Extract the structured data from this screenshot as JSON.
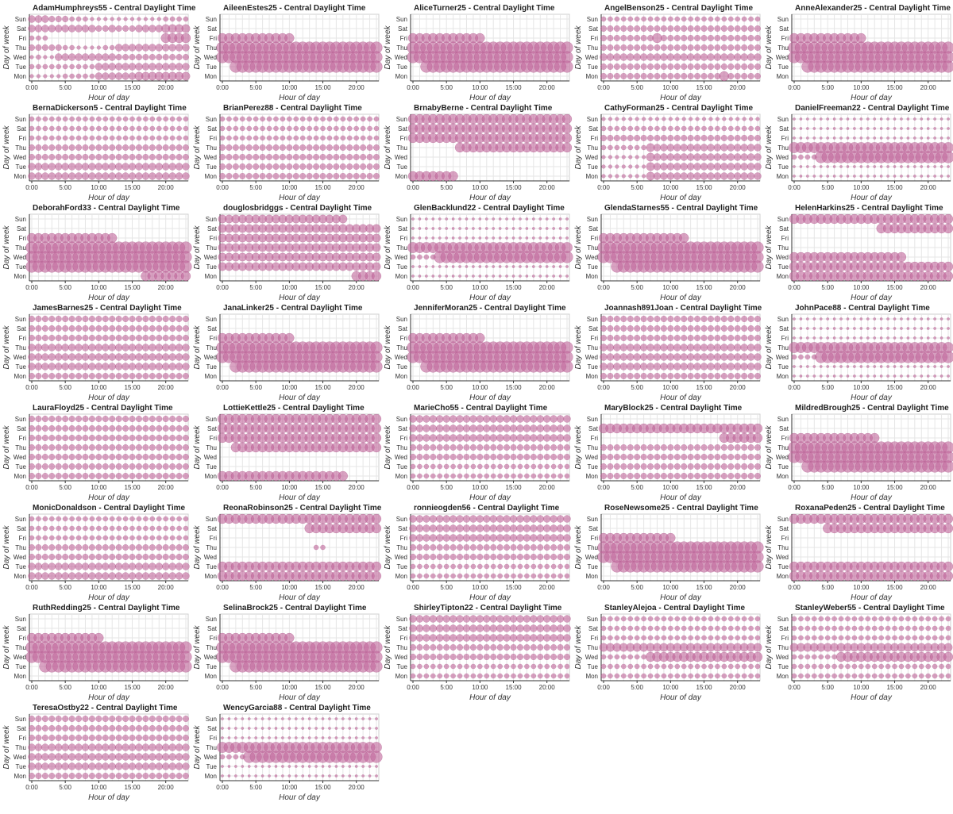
{
  "chart_data": {
    "type": "scatter",
    "style": {
      "marker": "circle",
      "color": "#c0649a",
      "opacity": 0.6,
      "grid": true,
      "legend": "none"
    },
    "xlabel": "Hour of day",
    "ylabel": "Day of week",
    "x_ticks": [
      "0:00",
      "5:00",
      "10:00",
      "15:00",
      "20:00"
    ],
    "xlim": [
      0,
      23
    ],
    "days": [
      "Mon",
      "Tue",
      "Wed",
      "Thu",
      "Fri",
      "Sat",
      "Sun"
    ],
    "size_scale_note": "size = relative activity level 0-10 per hour",
    "panels": [
      {
        "title": "AdamHumphreys55 - Central Daylight Time",
        "rows": {
          "Sun": "5554443332222222222233333333",
          "Sat": "5555555555445444555566666666",
          "Fri": "3330000000000000000077777777",
          "Thu": "4444433222233555555555555555",
          "Wed": "2322555555555444444444444444",
          "Tue": "3333333333555555555555555555",
          "Mon": "2222233333555555666666666666"
        }
      },
      {
        "title": "AileenEstes25 - Central Daylight Time",
        "rows": {
          "Sun": "0000000000000000000000000000",
          "Sat": "0000000000000000000000000000",
          "Fri": "7777777777700000000000000000",
          "Thu": "9999999999999999999999999999",
          "Wed": "9999999999999999999999999999",
          "Tue": "0099999999999999999999999999",
          "Mon": "0000000000000000000000000000"
        }
      },
      {
        "title": "AliceTurner25 - Central Daylight Time",
        "rows": {
          "Sun": "0000000000000000000000000000",
          "Sat": "0000000000000000000000000000",
          "Fri": "7777777777700000000000000000",
          "Thu": "9999999999999999999999999999",
          "Wed": "9999999999999999999999999999",
          "Tue": "0099999999999999999999999999",
          "Mon": "0000000000000000000000000000"
        }
      },
      {
        "title": "AngelBenson25 - Central Daylight Time",
        "rows": {
          "Sun": "3333333333333333333333333333",
          "Sat": "4444444444444444444444444444",
          "Fri": "4444444474444444444444444444",
          "Thu": "4444444444444444444444444444",
          "Wed": "5555555555555555555555555555",
          "Tue": "4444444444444444444444444444",
          "Mon": "4444444444444444447444444444"
        }
      },
      {
        "title": "AnneAlexander25 - Central Daylight Time",
        "rows": {
          "Sun": "0000000000000000000000000000",
          "Sat": "0000000000000000000000000000",
          "Fri": "7777777777700000000000000000",
          "Thu": "9999999999999999999999999999",
          "Wed": "9999999999999999999999999999",
          "Tue": "0099999999999999999999999999",
          "Mon": "0000000000000000000000000000"
        }
      },
      {
        "title": "BernaDickerson5 - Central Daylight Time",
        "rows": {
          "Sun": "3333333333333333333333333333",
          "Sat": "3333333333333333333333333333",
          "Fri": "3333333333333333333333333333",
          "Thu": "4444444444444444444444444444",
          "Wed": "4444444444444444444444444444",
          "Tue": "5555555555555555555555555555",
          "Mon": "5555555555555555555555555555"
        }
      },
      {
        "title": "BrianPerez88 - Central Daylight Time",
        "rows": {
          "Sun": "3333333333333333333333333333",
          "Sat": "3333333333333333333333333333",
          "Fri": "3333333333333333333333333333",
          "Thu": "4444444444444444444444444444",
          "Wed": "4444444444444444444444444444",
          "Tue": "4444444444444444444444444444",
          "Mon": "4444444444444444444444444444"
        }
      },
      {
        "title": "BrnabyBerne - Central Daylight Time",
        "rows": {
          "Sun": "7777777777777777777777777777",
          "Sat": "7777777777777777777777777777",
          "Fri": "7777777777777777777777777777",
          "Thu": "0000000777777777777777777777",
          "Wed": "0000000000000000000000000000",
          "Tue": "0000000000000000000000000000",
          "Mon": "7777777000000000000000000000"
        }
      },
      {
        "title": "CathyForman25 - Central Daylight Time",
        "rows": {
          "Sun": "2222222222222222222222222222",
          "Sat": "3333333333333333333333333333",
          "Fri": "4444444444444444444444444444",
          "Thu": "3333333655555555555555555555",
          "Wed": "2222222655555555555555555555",
          "Tue": "2222222655555555555555555555",
          "Mon": "2222222655555555555555555555"
        }
      },
      {
        "title": "DanielFreeman22 - Central Daylight Time",
        "rows": {
          "Sun": "1111111111111111111111111111",
          "Sat": "1111111111111111111111111111",
          "Fri": "1111111111111111111111111111",
          "Thu": "8888888888888888888888888888",
          "Wed": "3333999999999999999999999999",
          "Tue": "1111111111111111111111111111",
          "Mon": "1111111111111111111111111111"
        }
      },
      {
        "title": "DeborahFord33 - Central Daylight Time",
        "rows": {
          "Sun": "0000000000000000000000000000",
          "Sat": "0000000000000000000000000000",
          "Fri": "7777777777777000000000000000",
          "Thu": "9999999999999999999999999999",
          "Wed": "9999999999999999999999999999",
          "Tue": "9999999999999999999999999999",
          "Mon": "0000000000000000077777777777"
        }
      },
      {
        "title": "douglosbridggs - Central Daylight Time",
        "rows": {
          "Sun": "6666666666666666666000000000",
          "Sat": "6666666666666666666666666666",
          "Fri": "6666666666666666666666666666",
          "Thu": "6666666666666666666666666666",
          "Wed": "6666666666666666666666666666",
          "Tue": "6666666666666666666666666666",
          "Mon": "0000000000000000000077777777"
        }
      },
      {
        "title": "GlenBacklund22 - Central Daylight Time",
        "rows": {
          "Sun": "1111111111111111111111111111",
          "Sat": "1111111111111111111111111111",
          "Fri": "1111111111111111111111111111",
          "Thu": "8888888888888888888888888888",
          "Wed": "3333999999999999999999999999",
          "Tue": "1111111111111111111111111111",
          "Mon": "1111111111111111111111111111"
        }
      },
      {
        "title": "GlendaStarnes55 - Central Daylight Time",
        "rows": {
          "Sun": "0000000000000000000000000000",
          "Sat": "0000000000000000000000000000",
          "Fri": "7777777777777000000000000000",
          "Thu": "9999999999999999999999999999",
          "Wed": "9999999999999999999999999999",
          "Tue": "0099999999999999999999999999",
          "Mon": "0000000000000000000000000000"
        }
      },
      {
        "title": "HelenHarkins25 - Central Daylight Time",
        "rows": {
          "Sun": "7777777777777777777777777777",
          "Sat": "0000000000000777777777777777",
          "Fri": "0000000000000000000000000000",
          "Thu": "0000000000000000000000000000",
          "Wed": "7777777777777777700000000000",
          "Tue": "7777777777777777777777777777",
          "Mon": "7777777777777777777777777777"
        }
      },
      {
        "title": "JamesBarnes25 - Central Daylight Time",
        "rows": {
          "Sun": "4444444444444444444444444444",
          "Sat": "4444444444444444444444444444",
          "Fri": "4444444444444444444444444444",
          "Thu": "5555555555555555555555555555",
          "Wed": "5555555555555555555555555555",
          "Tue": "5555555555555555555555555555",
          "Mon": "4444444444444444444444444444"
        }
      },
      {
        "title": "JanaLinker25 - Central Daylight Time",
        "rows": {
          "Sun": "0000000000000000000000000000",
          "Sat": "0000000000000000000000000000",
          "Fri": "7777777777700000000000000000",
          "Thu": "9999999999999999999999999999",
          "Wed": "9999999999999999999999999999",
          "Tue": "0099999999999999999999999999",
          "Mon": "0000000000000000000000000000"
        }
      },
      {
        "title": "JenniferMoran25 - Central Daylight Time",
        "rows": {
          "Sun": "0000000000000000000000000000",
          "Sat": "0000000000000000000000000000",
          "Fri": "7777777777700000000000000000",
          "Thu": "9999999999999999999999999999",
          "Wed": "9999999999999999999999999999",
          "Tue": "0099999999999999999999999999",
          "Mon": "0000000000000000000000000000"
        }
      },
      {
        "title": "Joannash891Joan - Central Daylight Time",
        "rows": {
          "Sun": "4444444444444444444444444444",
          "Sat": "4444444444444444444444444444",
          "Fri": "4444444444444444444444444444",
          "Thu": "5555555555555555555555555555",
          "Wed": "5555555555555555555555555555",
          "Tue": "5555555555555555555555555555",
          "Mon": "4444444444444444444444444444"
        }
      },
      {
        "title": "JohnPace88 - Central Daylight Time",
        "rows": {
          "Sun": "1111111111111111111111111111",
          "Sat": "1111111111111111111111111111",
          "Fri": "1111111111111111111111111111",
          "Thu": "8888888888888888888888888888",
          "Wed": "3333999999999999999999999999",
          "Tue": "1111111111111111111111111111",
          "Mon": "1111111111111111111111111111"
        }
      },
      {
        "title": "LauraFloyd25 - Central Daylight Time",
        "rows": {
          "Sun": "4444444444444444444444444444",
          "Sat": "4444444444444444444444444444",
          "Fri": "4444444444444444444444444444",
          "Thu": "4444444444444444444444444444",
          "Wed": "4444444444444444444444444444",
          "Tue": "4444444444444444444444444444",
          "Mon": "4444444444444444444444444444"
        }
      },
      {
        "title": "LottieKettle25 - Central Daylight Time",
        "rows": {
          "Sun": "7777777777777777777777777777",
          "Sat": "7777777777777777777777777777",
          "Fri": "7777777777777777777777777777",
          "Thu": "0077777777777777777777777777",
          "Wed": "0000000000000000000000000000",
          "Tue": "0000000000000000000000000000",
          "Mon": "7777777777777777777000000000"
        }
      },
      {
        "title": "MarieCho55 - Central Daylight Time",
        "rows": {
          "Sun": "5555555555555555555555555555",
          "Sat": "5555555555555555555555555555",
          "Fri": "5555555555555555555555555555",
          "Thu": "4444444444444444444444444444",
          "Wed": "4444444444444444444444444444",
          "Tue": "3333333333333333333333333333",
          "Mon": "3333333333333333333333333333"
        }
      },
      {
        "title": "MaryBlock25 - Central Daylight Time",
        "rows": {
          "Sun": "0000000000000000000000000000",
          "Sat": "7777777777777777777777777777",
          "Fri": "0000000000000000007777777777",
          "Thu": "4444444444444444444444444444",
          "Wed": "4444444444444444444444444444",
          "Tue": "4444444444444444444444444444",
          "Mon": "4444444444444444444444444444"
        }
      },
      {
        "title": "MildredBrough25 - Central Daylight Time",
        "rows": {
          "Sun": "0000000000000000000000000000",
          "Sat": "0000000000000000000000000000",
          "Fri": "7777777777777000000000000000",
          "Thu": "9999999999999999999999999999",
          "Wed": "9999999999999999999999999999",
          "Tue": "0099999999999999999999999999",
          "Mon": "0000000000000000000000000000"
        }
      },
      {
        "title": "MonicDonaldson - Central Daylight Time",
        "rows": {
          "Sun": "3333333333333333333333333333",
          "Sat": "3333333333333333333333333333",
          "Fri": "3333333333333333333333333333",
          "Thu": "4444444444444444444444444444",
          "Wed": "4444444444444444444444444444",
          "Tue": "5555555555555555555555555555",
          "Mon": "5555555555555555555555555555"
        }
      },
      {
        "title": "ReonaRobinson25 - Central Daylight Time",
        "rows": {
          "Sun": "7777777777777777777777777777",
          "Sat": "0000000000000777777777777777",
          "Fri": "0000000000000000000000000000",
          "Thu": "0000000000000033000000000000",
          "Wed": "0000000000000000000000000000",
          "Tue": "7777777777777777777777777777",
          "Mon": "7777777777777777777777777777"
        }
      },
      {
        "title": "ronnieogden56 - Central Daylight Time",
        "rows": {
          "Sun": "5555555555555555555555555555",
          "Sat": "5555555555555555555555555555",
          "Fri": "5555555555555555555555555555",
          "Thu": "4444444444444444444444444444",
          "Wed": "4444444444444444444444444444",
          "Tue": "3333333333333333333333333333",
          "Mon": "3333333333333333333333333333"
        }
      },
      {
        "title": "RoseNewsome25 - Central Daylight Time",
        "rows": {
          "Sun": "0000000000000000000000000000",
          "Sat": "0000000000000000000000000000",
          "Fri": "7777777777700000000000000000",
          "Thu": "9999999999999999999999999999",
          "Wed": "9999999999999999999999999999",
          "Tue": "0099999999999999999999999999",
          "Mon": "0000000000000000000000000000"
        }
      },
      {
        "title": "RoxanaPeden25 - Central Daylight Time",
        "rows": {
          "Sun": "7777777777777777777777777777",
          "Sat": "0000077777777777777777777777",
          "Fri": "0000000000000000000000000000",
          "Thu": "0000000000000000000000000000",
          "Wed": "0000000000000000000000000000",
          "Tue": "7777777777777777777777777777",
          "Mon": "7777777777777777777777777777"
        }
      },
      {
        "title": "RuthRedding25 - Central Daylight Time",
        "rows": {
          "Sun": "0000000000000000000000000000",
          "Sat": "0000000000000000000000000000",
          "Fri": "7777777777700000000000000000",
          "Thu": "9999999999999999999999999999",
          "Wed": "9999999999999999999999999999",
          "Tue": "0099999999999999999999999999",
          "Mon": "0000000000000000000000000000"
        }
      },
      {
        "title": "SelinaBrock25 - Central Daylight Time",
        "rows": {
          "Sun": "0000000000000000000000000000",
          "Sat": "0000000000000000000000000000",
          "Fri": "7777777777700000000000000000",
          "Thu": "9999999999999999999999999999",
          "Wed": "9999999999999999999999999999",
          "Tue": "0099999999999999999999999999",
          "Mon": "0000000000000000000000000000"
        }
      },
      {
        "title": "ShirleyTipton22 - Central Daylight Time",
        "rows": {
          "Sun": "5555555555555555555555555555",
          "Sat": "5555555555555555555555555555",
          "Fri": "5555555555555555555555555555",
          "Thu": "4444444444444444444444444444",
          "Wed": "4444444444444444444444444444",
          "Tue": "3333333333333333333333333333",
          "Mon": "3333333333333333333333333333"
        }
      },
      {
        "title": "StanleyAlejoa - Central Daylight Time",
        "rows": {
          "Sun": "3333333333333333333333333333",
          "Sat": "3333333333333333333333333333",
          "Fri": "3333333333333333333333333333",
          "Thu": "6666666666666666666666666666",
          "Wed": "3333333777777777777777777777",
          "Tue": "3333333333333333333333333333",
          "Mon": "3333333333333333333333333333"
        }
      },
      {
        "title": "StanleyWeber55 - Central Daylight Time",
        "rows": {
          "Sun": "3333333333333333333333333333",
          "Sat": "3333333333333333333333333333",
          "Fri": "3333333333333333333333333333",
          "Thu": "6666666666666666666666666666",
          "Wed": "3333333777777777777777777777",
          "Tue": "3333333333333333333333333333",
          "Mon": "3333333333333333333333333333"
        }
      },
      {
        "title": "TeresaOstby22 - Central Daylight Time",
        "rows": {
          "Sun": "4444444444444444444444444444",
          "Sat": "4444444444444444444444444444",
          "Fri": "4444444444444444444444444444",
          "Thu": "5555555555555555555555555555",
          "Wed": "5555555555555555555555555555",
          "Tue": "5555555555555555555555555555",
          "Mon": "4444444444444444444444444444"
        }
      },
      {
        "title": "WencyGarcia88 - Central Daylight Time",
        "rows": {
          "Sun": "1111111111111111111111111111",
          "Sat": "1111111111111111111111111111",
          "Fri": "1111111111111111111111111111",
          "Thu": "8888888888888888888888888888",
          "Wed": "3333999999999999999999999999",
          "Tue": "1111111111111111111111111111",
          "Mon": "1111111111111111111111111111"
        }
      }
    ]
  }
}
